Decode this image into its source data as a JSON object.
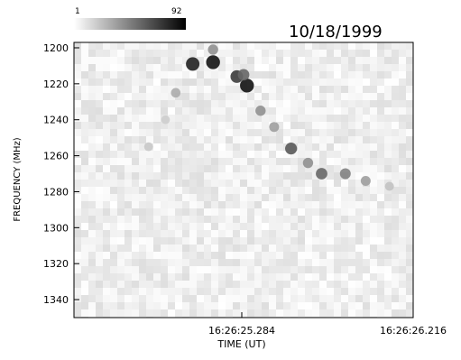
{
  "chart_data": {
    "type": "heatmap",
    "title": "10/18/1999",
    "xlabel": "TIME (UT)",
    "ylabel": "FREQUENCY (MHz)",
    "x_tick_labels": [
      "16:26:25.284",
      "16:26:26.216"
    ],
    "y_ticks": [
      1200,
      1220,
      1240,
      1260,
      1280,
      1300,
      1320,
      1340
    ],
    "ylim": [
      1350,
      1197
    ],
    "colorbar": {
      "min_label": "1",
      "max_label": "92",
      "min": 1,
      "max": 92,
      "colors": [
        "#ffffff",
        "#000000"
      ]
    },
    "emission": [
      {
        "t": 0.35,
        "f": 1209,
        "v": 80
      },
      {
        "t": 0.41,
        "f": 1208,
        "v": 85
      },
      {
        "t": 0.41,
        "f": 1201,
        "v": 40
      },
      {
        "t": 0.48,
        "f": 1216,
        "v": 70
      },
      {
        "t": 0.51,
        "f": 1221,
        "v": 85
      },
      {
        "t": 0.3,
        "f": 1225,
        "v": 30
      },
      {
        "t": 0.27,
        "f": 1240,
        "v": 18
      },
      {
        "t": 0.55,
        "f": 1235,
        "v": 40
      },
      {
        "t": 0.59,
        "f": 1244,
        "v": 35
      },
      {
        "t": 0.64,
        "f": 1256,
        "v": 60
      },
      {
        "t": 0.69,
        "f": 1264,
        "v": 40
      },
      {
        "t": 0.73,
        "f": 1270,
        "v": 55
      },
      {
        "t": 0.8,
        "f": 1270,
        "v": 45
      },
      {
        "t": 0.86,
        "f": 1274,
        "v": 35
      },
      {
        "t": 0.93,
        "f": 1277,
        "v": 22
      },
      {
        "t": 0.22,
        "f": 1255,
        "v": 20
      },
      {
        "t": 0.5,
        "f": 1215,
        "v": 55
      }
    ],
    "grid": false
  }
}
